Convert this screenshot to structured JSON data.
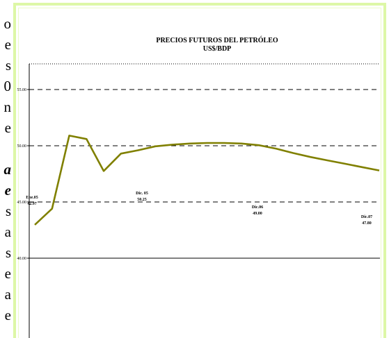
{
  "left_text": {
    "lines": [
      "o",
      "e",
      "s",
      "0",
      "n",
      "e",
      "",
      "a",
      "e",
      "s",
      "a",
      "s",
      "e",
      "a",
      "e"
    ]
  },
  "colors": {
    "frame_border": "#ddf7a6",
    "line": "#808000",
    "grid": "#000000"
  },
  "chart_data": {
    "type": "line",
    "title": "PRECIOS FUTUROS DEL PETRÓLEO",
    "subtitle": "US$/BDP",
    "xlabel": "",
    "ylabel": "",
    "ylim": [
      40,
      56.5
    ],
    "yticks": [
      "40.00",
      "45.00",
      "50.00",
      "55.00"
    ],
    "grid": true,
    "series": [
      {
        "values": [
          42.97,
          44.4,
          50.9,
          50.6,
          47.75,
          49.3,
          49.6,
          49.95,
          50.1,
          50.2,
          50.25,
          50.25,
          50.2,
          50.05,
          49.75,
          49.35,
          49.0,
          48.7,
          48.4,
          48.1,
          47.8
        ]
      }
    ],
    "annotations": [
      {
        "label": "Ene.05",
        "value": "42.97",
        "index": 0
      },
      {
        "label": "Dic. 05",
        "value": "50.25",
        "index": 10
      },
      {
        "label": "Dic.06",
        "value": "49.00",
        "index": 16
      },
      {
        "label": "Dic.07",
        "value": "47.80",
        "index": 20
      }
    ]
  }
}
